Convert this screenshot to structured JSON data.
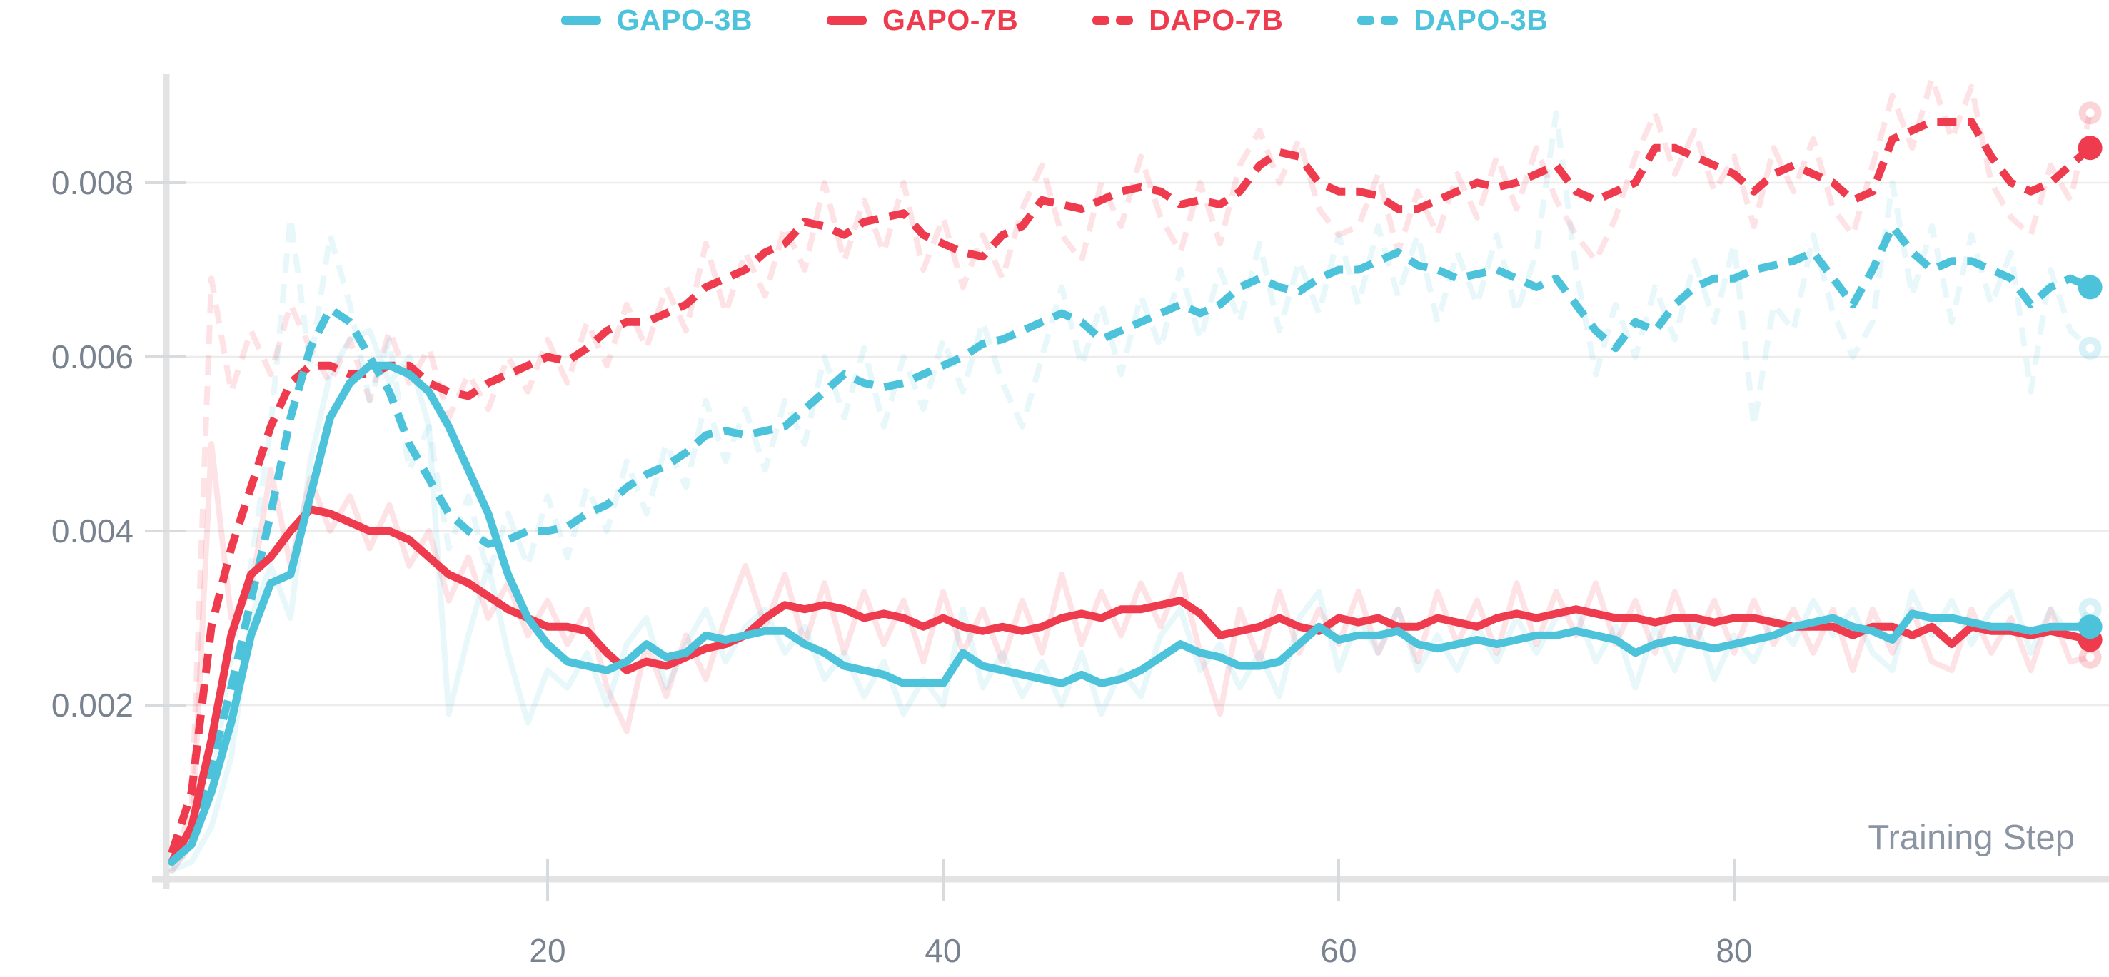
{
  "chart_data": {
    "type": "line",
    "title": "",
    "xlabel": "Training Step",
    "ylabel": "",
    "x_ticks": [
      20,
      40,
      60,
      80
    ],
    "y_ticks": [
      "0.002",
      "0.004",
      "0.006",
      "0.008"
    ],
    "y_tick_values": [
      0.002,
      0.004,
      0.006,
      0.008
    ],
    "xlim": [
      0,
      99
    ],
    "ylim": [
      0,
      0.00925
    ],
    "grid": "horizontal",
    "legend_position": "top-center",
    "value_scale": 0.0001,
    "x_start_step": 1,
    "colors": {
      "cyan": "#4cc3da",
      "red": "#ee3b4e",
      "grid": "#ececec",
      "spine": "#e3e3e3",
      "tick": "#d7dbdd",
      "axis_text": "#79828f",
      "axis_title_text": "#8b94a2"
    },
    "legend": [
      {
        "label": "GAPO-3B",
        "color": "#4cc3da",
        "dashed": false
      },
      {
        "label": "GAPO-7B",
        "color": "#ee3b4e",
        "dashed": false
      },
      {
        "label": "DAPO-7B",
        "color": "#ee3b4e",
        "dashed": true
      },
      {
        "label": "DAPO-3B",
        "color": "#4cc3da",
        "dashed": true
      }
    ],
    "series": [
      {
        "name": "DAPO-7B-raw",
        "role": "raw",
        "color": "#ee3b4e",
        "dashed": true,
        "opacity": 0.14,
        "width": 8,
        "dot": "ring",
        "values": [
          2,
          8,
          69,
          56,
          63,
          58,
          66,
          61,
          57,
          62,
          55,
          63,
          57,
          61,
          53,
          58,
          54,
          60,
          56,
          62,
          57,
          64,
          59,
          66,
          61,
          68,
          63,
          73,
          65,
          72,
          67,
          75,
          70,
          80,
          71,
          78,
          72,
          80,
          70,
          76,
          68,
          74,
          69,
          77,
          82,
          74,
          71,
          80,
          75,
          83,
          76,
          72,
          80,
          73,
          82,
          86,
          80,
          85,
          77,
          74,
          75,
          81,
          72,
          79,
          74,
          81,
          76,
          83,
          77,
          84,
          78,
          74,
          71,
          76,
          83,
          88,
          81,
          86,
          79,
          83,
          75,
          84,
          79,
          85,
          77,
          74,
          82,
          90,
          84,
          92,
          85,
          91,
          80,
          76,
          74,
          82,
          78,
          88
        ]
      },
      {
        "name": "DAPO-3B-raw",
        "role": "raw",
        "color": "#4cc3da",
        "dashed": true,
        "opacity": 0.13,
        "width": 8,
        "dot": "ring",
        "values": [
          1,
          4,
          10,
          26,
          36,
          52,
          76,
          59,
          74,
          66,
          55,
          62,
          47,
          52,
          38,
          44,
          35,
          42,
          36,
          44,
          37,
          45,
          40,
          48,
          42,
          50,
          45,
          55,
          48,
          54,
          47,
          55,
          50,
          60,
          53,
          61,
          52,
          60,
          54,
          62,
          56,
          64,
          57,
          52,
          60,
          68,
          59,
          66,
          58,
          67,
          61,
          70,
          62,
          70,
          64,
          73,
          63,
          71,
          65,
          74,
          66,
          75,
          67,
          74,
          64,
          72,
          66,
          74,
          65,
          72,
          88,
          70,
          58,
          66,
          60,
          68,
          62,
          71,
          64,
          73,
          52,
          66,
          63,
          74,
          65,
          60,
          64,
          80,
          67,
          75,
          64,
          74,
          66,
          72,
          56,
          70,
          63,
          61
        ]
      },
      {
        "name": "GAPO-7B-raw",
        "role": "raw",
        "color": "#ee3b4e",
        "dashed": false,
        "opacity": 0.14,
        "width": 8,
        "dot": "ring",
        "values": [
          1,
          4,
          50,
          30,
          33,
          47,
          36,
          46,
          40,
          44,
          38,
          43,
          36,
          40,
          32,
          37,
          30,
          34,
          28,
          32,
          27,
          31,
          22,
          17,
          27,
          21,
          28,
          23,
          30,
          36,
          29,
          35,
          27,
          34,
          26,
          33,
          27,
          32,
          25,
          33,
          26,
          31,
          25,
          32,
          26,
          35,
          27,
          33,
          28,
          34,
          29,
          35,
          26,
          19,
          31,
          25,
          33,
          26,
          31,
          27,
          33,
          26,
          31,
          25,
          33,
          27,
          32,
          26,
          34,
          27,
          33,
          28,
          34,
          27,
          32,
          26,
          33,
          27,
          32,
          26,
          32,
          27,
          31,
          26,
          31,
          24,
          31,
          26,
          31,
          25,
          24,
          31,
          26,
          30,
          24,
          31,
          25,
          25.5
        ]
      },
      {
        "name": "GAPO-3B-raw",
        "role": "raw",
        "color": "#4cc3da",
        "dashed": false,
        "opacity": 0.13,
        "width": 8,
        "dot": "ring",
        "values": [
          1,
          2,
          6,
          14,
          30,
          36,
          30,
          48,
          58,
          62,
          63,
          57,
          60,
          52,
          19,
          28,
          36,
          26,
          18,
          24,
          22,
          26,
          20,
          27,
          30,
          22,
          27,
          31,
          25,
          29,
          31,
          26,
          29,
          23,
          26,
          21,
          25,
          19,
          23,
          20,
          31,
          22,
          26,
          21,
          25,
          20,
          26,
          19,
          24,
          21,
          28,
          31,
          24,
          27,
          22,
          26,
          21,
          30,
          33,
          24,
          30,
          26,
          31,
          24,
          28,
          24,
          29,
          25,
          30,
          26,
          30,
          31,
          25,
          29,
          22,
          29,
          24,
          30,
          23,
          28,
          25,
          30,
          27,
          32,
          28,
          31,
          26,
          24,
          33,
          28,
          32,
          27,
          31,
          33,
          26,
          31,
          28,
          31
        ]
      },
      {
        "name": "DAPO-7B",
        "role": "smooth",
        "color": "#ee3b4e",
        "dashed": true,
        "opacity": 1,
        "width": 11,
        "dot": "solid",
        "values": [
          3,
          10,
          29,
          38,
          45,
          52,
          57,
          59,
          59,
          58,
          58,
          59,
          59,
          57,
          56,
          55.5,
          57,
          58,
          59,
          60,
          59.5,
          61,
          63,
          64,
          64,
          65,
          66,
          68,
          69,
          70,
          72,
          73,
          75.5,
          75,
          74,
          75.5,
          76,
          76.5,
          74,
          73,
          72,
          71.5,
          74,
          75,
          78,
          77.5,
          77,
          78,
          79,
          79.5,
          79,
          77.5,
          78,
          77.5,
          79,
          82,
          83.5,
          83,
          80,
          79,
          79,
          78.5,
          77,
          77,
          78,
          79,
          80,
          79.5,
          80,
          81,
          82,
          79,
          78,
          79,
          80,
          84,
          84,
          83,
          82,
          81,
          79,
          81,
          82,
          81,
          80,
          78,
          79,
          85,
          86,
          87,
          87,
          87,
          83,
          80,
          79,
          80,
          82,
          84
        ]
      },
      {
        "name": "DAPO-3B",
        "role": "smooth",
        "color": "#4cc3da",
        "dashed": true,
        "opacity": 1,
        "width": 11,
        "dot": "solid",
        "values": [
          2,
          5,
          13,
          22,
          32,
          42,
          53,
          61,
          65.5,
          64,
          60,
          56,
          50,
          46,
          42,
          40,
          38.5,
          39,
          40,
          40,
          40.5,
          42,
          43,
          45,
          46.5,
          47.5,
          49,
          51,
          51.5,
          51,
          51.5,
          52,
          54,
          56,
          58,
          57,
          56.5,
          57,
          58,
          59,
          60,
          61.5,
          62,
          63,
          64,
          65,
          64,
          62,
          63,
          64,
          65,
          66,
          65,
          66,
          68,
          69,
          68,
          67.5,
          69,
          70,
          70,
          71,
          72,
          70.5,
          70,
          69,
          69.5,
          70,
          69,
          68,
          69,
          66,
          63,
          61,
          64,
          63,
          66,
          68,
          69,
          69,
          70,
          70.5,
          71,
          72,
          69,
          66,
          70,
          75,
          72,
          70,
          71,
          71,
          70,
          69,
          66,
          68,
          69,
          68
        ]
      },
      {
        "name": "GAPO-7B",
        "role": "smooth",
        "color": "#ee3b4e",
        "dashed": false,
        "opacity": 1,
        "width": 11,
        "dot": "solid",
        "values": [
          2,
          6,
          16,
          28,
          35,
          37,
          40,
          42.5,
          42,
          41,
          40,
          40,
          39,
          37,
          35,
          34,
          32.5,
          31,
          30,
          29,
          29,
          28.5,
          26,
          24,
          25,
          24.5,
          25.5,
          26.5,
          27,
          28,
          30,
          31.5,
          31,
          31.5,
          31,
          30,
          30.5,
          30,
          29,
          30,
          29,
          28.5,
          29,
          28.5,
          29,
          30,
          30.5,
          30,
          31,
          31,
          31.5,
          32,
          30.5,
          28,
          28.5,
          29,
          30,
          29,
          28.5,
          30,
          29.5,
          30,
          29,
          29,
          30,
          29.5,
          29,
          30,
          30.5,
          30,
          30.5,
          31,
          30.5,
          30,
          30,
          29.5,
          30,
          30,
          29.5,
          30,
          30,
          29.5,
          29,
          29,
          29,
          28,
          29,
          29,
          28,
          29,
          27,
          29,
          28.5,
          28.5,
          28,
          28.5,
          28,
          27.5
        ]
      },
      {
        "name": "GAPO-3B",
        "role": "smooth",
        "color": "#4cc3da",
        "dashed": false,
        "opacity": 1,
        "width": 11,
        "dot": "solid",
        "values": [
          2,
          4,
          10,
          18,
          28,
          34,
          35,
          44,
          53,
          57,
          59,
          59,
          58,
          56,
          52,
          47,
          42,
          35,
          30,
          27,
          25,
          24.5,
          24,
          25,
          27,
          25.5,
          26,
          28,
          27.5,
          28,
          28.5,
          28.5,
          27,
          26,
          24.5,
          24,
          23.5,
          22.5,
          22.5,
          22.5,
          26,
          24.5,
          24,
          23.5,
          23,
          22.5,
          23.5,
          22.5,
          23,
          24,
          25.5,
          27,
          26,
          25.5,
          24.5,
          24.5,
          25,
          27,
          29,
          27.5,
          28,
          28,
          28.5,
          27,
          26.5,
          27,
          27.5,
          27,
          27.5,
          28,
          28,
          28.5,
          28,
          27.5,
          26,
          27,
          27.5,
          27,
          26.5,
          27,
          27.5,
          28,
          29,
          29.5,
          30,
          29,
          28.5,
          27.5,
          30.5,
          30,
          30,
          29.5,
          29,
          29,
          28.5,
          29,
          29,
          29
        ]
      }
    ]
  }
}
